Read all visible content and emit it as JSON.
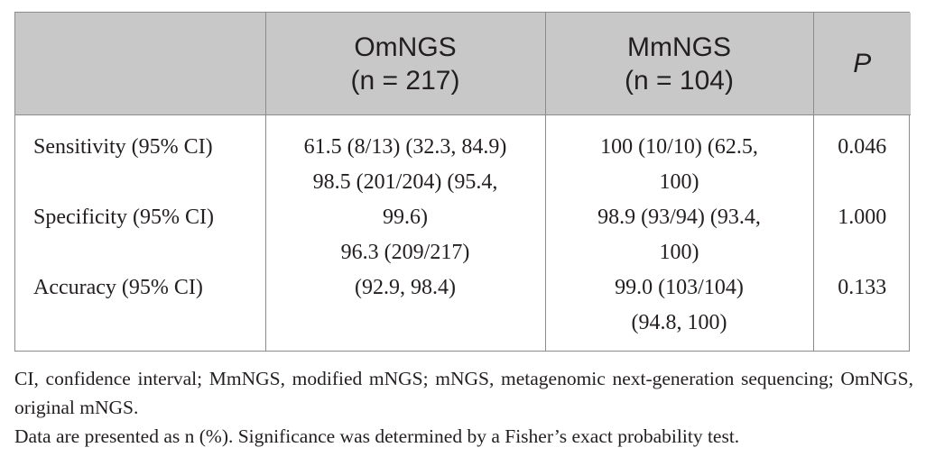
{
  "table": {
    "header": {
      "blank": "",
      "col1": {
        "name": "OmNGS",
        "n": "(n = 217)"
      },
      "col2": {
        "name": "MmNGS",
        "n": "(n = 104)"
      },
      "col3": "P"
    },
    "row_labels": [
      "Sensitivity (95% CI)",
      "Specificity (95% CI)",
      "Accuracy (95% CI)"
    ],
    "omngs_lines": [
      "61.5 (8/13) (32.3, 84.9)",
      "98.5 (201/204) (95.4,",
      "99.6)",
      "96.3 (209/217)",
      "(92.9, 98.4)"
    ],
    "mmngs_lines": [
      "100 (10/10) (62.5,",
      "100)",
      "98.9 (93/94) (93.4,",
      "100)",
      "99.0 (103/104)",
      "(94.8, 100)"
    ],
    "p_values": [
      "0.046",
      "1.000",
      "0.133"
    ]
  },
  "footnotes": {
    "abbreviations": "CI, confidence interval; MmNGS, modified mNGS; mNGS, metagenomic next-generation sequencing; OmNGS, original mNGS.",
    "note": "Data are presented as n (%). Significance was determined by a Fisher’s exact probability test."
  }
}
